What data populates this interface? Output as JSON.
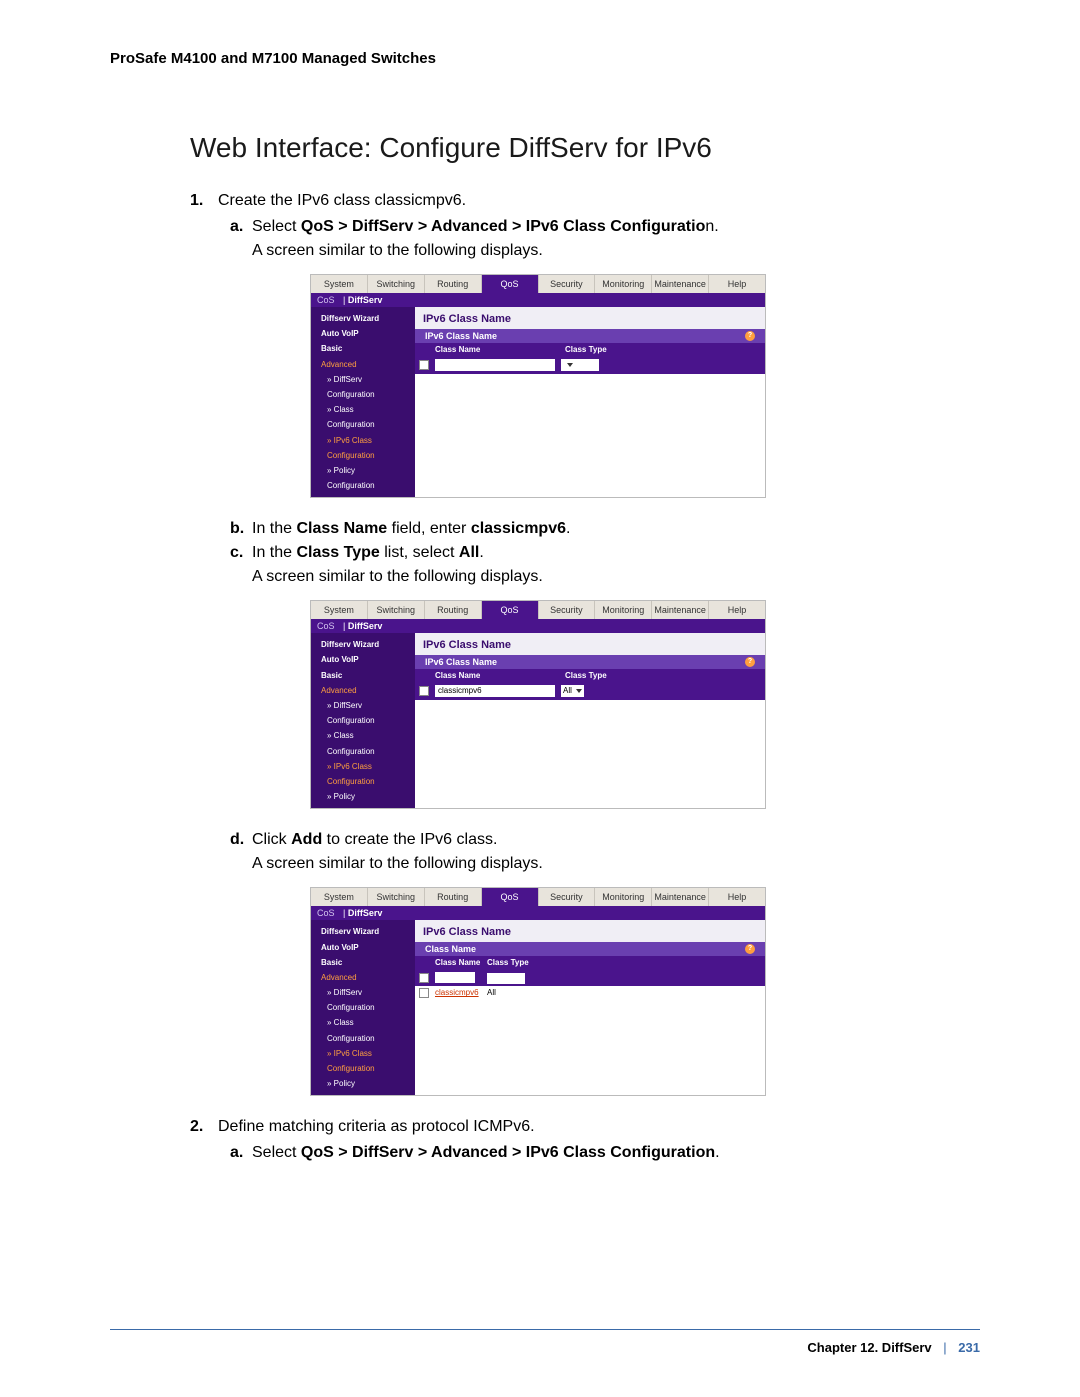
{
  "doc_header": "ProSafe M4100 and M7100 Managed Switches",
  "section_title": "Web Interface: Configure DiffServ for IPv6",
  "step1": {
    "num": "1.",
    "text": "Create the IPv6 class classicmpv6."
  },
  "sub_a": {
    "letter": "a.",
    "prefix": "Select ",
    "bold": "QoS > DiffServ > Advanced > IPv6 Class Configuratio",
    "suffix": "n."
  },
  "sub_a_after": "A screen similar to the following displays.",
  "sub_b": {
    "letter": "b.",
    "prefix": "In the ",
    "bold1": "Class Name",
    "mid": " field, enter ",
    "bold2": "classicmpv6",
    "suffix": "."
  },
  "sub_c": {
    "letter": "c.",
    "prefix": "In the ",
    "bold1": "Class Type",
    "mid": " list, select ",
    "bold2": "All",
    "suffix": "."
  },
  "sub_c_after": "A screen similar to the following displays.",
  "sub_d": {
    "letter": "d.",
    "prefix": "Click ",
    "bold1": "Add",
    "suffix": " to create the IPv6 class."
  },
  "sub_d_after": "A screen similar to the following displays.",
  "step2": {
    "num": "2.",
    "text": "Define matching criteria as protocol ICMPv6."
  },
  "sub2a": {
    "letter": "a.",
    "prefix": "Select ",
    "bold": "QoS > DiffServ > Advanced > IPv6 Class Configuration",
    "suffix": "."
  },
  "tabs": [
    "System",
    "Switching",
    "Routing",
    "QoS",
    "Security",
    "Monitoring",
    "Maintenance",
    "Help"
  ],
  "active_tab_index": 3,
  "subtabs": {
    "a": "CoS",
    "b": "DiffServ"
  },
  "sidebar_items": [
    {
      "label": "Diffserv Wizard",
      "cls": "bold"
    },
    {
      "label": "Auto VoIP",
      "cls": "bold"
    },
    {
      "label": "Basic",
      "cls": "bold"
    },
    {
      "label": "Advanced",
      "cls": "orange"
    },
    {
      "label": "» DiffServ",
      "cls": "sub"
    },
    {
      "label": "Configuration",
      "cls": "sub"
    },
    {
      "label": "» Class",
      "cls": "sub"
    },
    {
      "label": "Configuration",
      "cls": "sub"
    },
    {
      "label": "» IPv6 Class",
      "cls": "sub orange"
    },
    {
      "label": "Configuration",
      "cls": "sub orange"
    },
    {
      "label": "» Policy",
      "cls": "sub"
    },
    {
      "label": "Configuration",
      "cls": "sub"
    }
  ],
  "sidebar_items_short": [
    {
      "label": "Diffserv Wizard",
      "cls": "bold"
    },
    {
      "label": "Auto VoIP",
      "cls": "bold"
    },
    {
      "label": "Basic",
      "cls": "bold"
    },
    {
      "label": "Advanced",
      "cls": "orange"
    },
    {
      "label": "» DiffServ",
      "cls": "sub"
    },
    {
      "label": "Configuration",
      "cls": "sub"
    },
    {
      "label": "» Class",
      "cls": "sub"
    },
    {
      "label": "Configuration",
      "cls": "sub"
    },
    {
      "label": "» IPv6 Class",
      "cls": "sub orange"
    },
    {
      "label": "Configuration",
      "cls": "sub orange"
    },
    {
      "label": "» Policy",
      "cls": "sub"
    }
  ],
  "panel": {
    "title": "IPv6 Class Name",
    "bar": "IPv6 Class Name",
    "col1": "Class Name",
    "col2": "Class Type"
  },
  "shot2": {
    "classname_value": "classicmpv6",
    "classtype_value": "All"
  },
  "shot3": {
    "bar": "Class Name",
    "th1": "Class Name",
    "th2": "Class Type",
    "row_link": "classicmpv6",
    "row_type": "All"
  },
  "footer": {
    "chapter": "Chapter 12.  DiffServ",
    "page": "231"
  },
  "colors": {
    "purple_dark": "#3a0d6e",
    "purple": "#4a148c",
    "purple_light": "#6a3fb0",
    "orange": "#ff9f3f",
    "link_red": "#cc3300",
    "footer_blue": "#3a6aa8"
  }
}
